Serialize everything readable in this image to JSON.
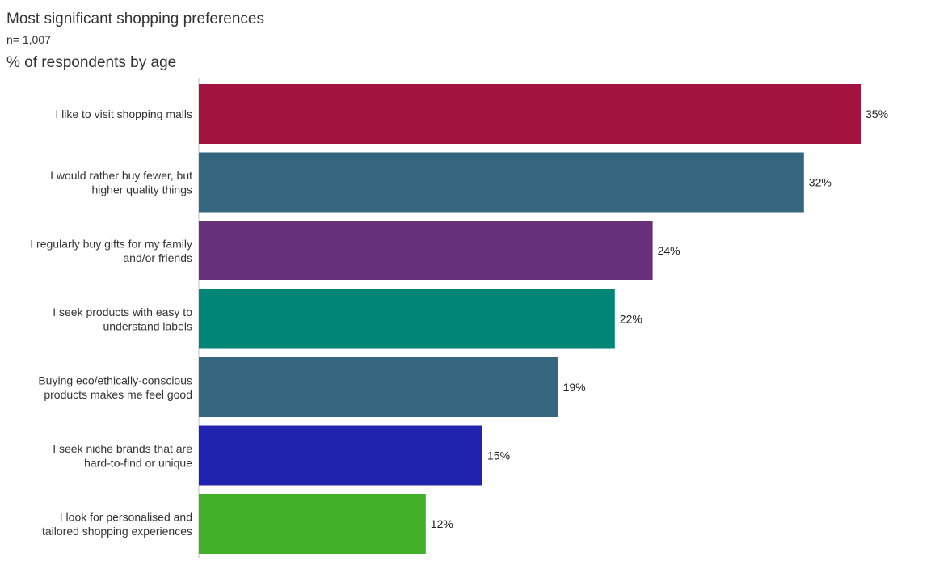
{
  "chart_data": {
    "type": "bar",
    "orientation": "horizontal",
    "title": "Most significant shopping preferences",
    "subtitle": "n= 1,007",
    "measure_label": "% of respondents by age",
    "value_format": "{v}%",
    "xlim": [
      0,
      38
    ],
    "grid": false,
    "categories": [
      [
        "I like to visit shopping malls"
      ],
      [
        "I would rather buy fewer, but",
        "higher quality things"
      ],
      [
        "I regularly buy gifts for my family",
        "and/or friends"
      ],
      [
        "I seek products with easy to",
        "understand labels"
      ],
      [
        "Buying eco/ethically-conscious",
        "products makes me feel good"
      ],
      [
        "I seek niche brands that are",
        "hard-to-find or unique"
      ],
      [
        "I look for personalised and",
        "tailored shopping experiences"
      ]
    ],
    "values": [
      35,
      32,
      24,
      22,
      19,
      15,
      12
    ],
    "value_labels": [
      "35%",
      "32%",
      "24%",
      "22%",
      "19%",
      "15%",
      "12%"
    ],
    "colors": [
      "#A3133F",
      "#36657F",
      "#67317A",
      "#008577",
      "#36657F",
      "#2023AD",
      "#43B02A"
    ]
  }
}
